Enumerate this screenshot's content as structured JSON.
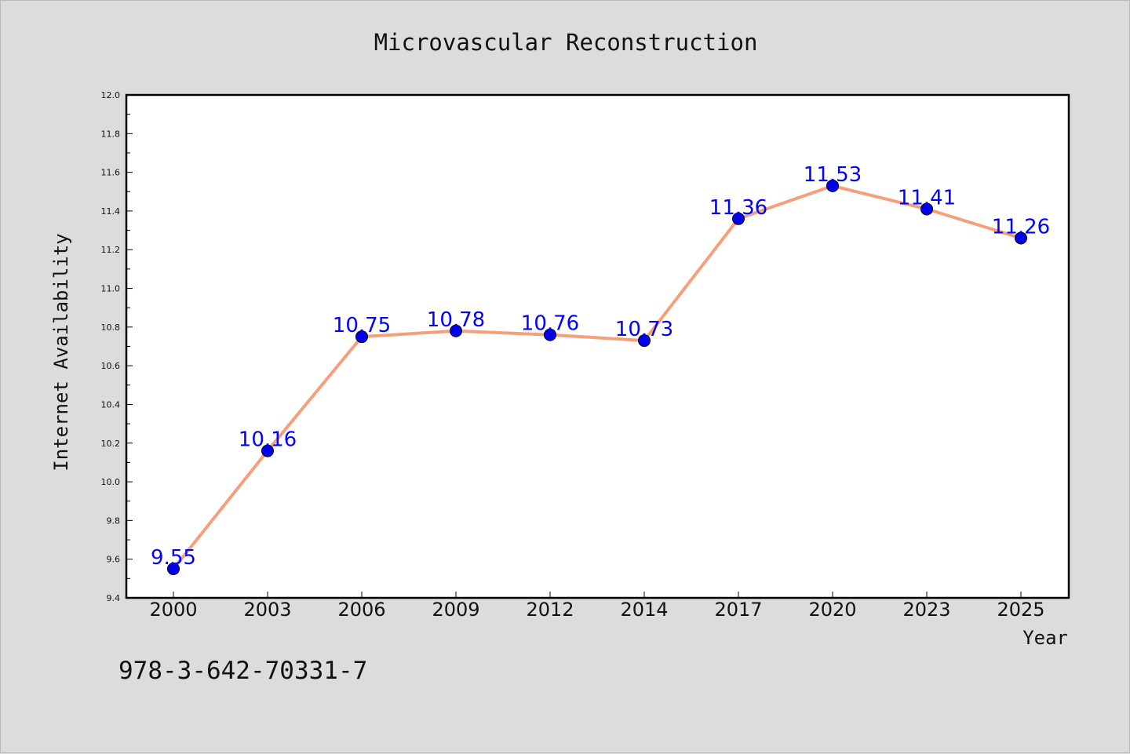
{
  "chart_data": {
    "type": "line",
    "title": "Microvascular Reconstruction",
    "xlabel": "Year",
    "ylabel": "Internet Availability",
    "categories": [
      "2000",
      "2003",
      "2006",
      "2009",
      "2012",
      "2014",
      "2017",
      "2020",
      "2023",
      "2025"
    ],
    "series": [
      {
        "values": [
          9.55,
          10.16,
          10.75,
          10.78,
          10.76,
          10.73,
          11.36,
          11.53,
          11.41,
          11.26
        ],
        "labels": [
          "9.55",
          "10.16",
          "10.75",
          "10.78",
          "10.76",
          "10.73",
          "11.36",
          "11.53",
          "11.41",
          "11.26"
        ],
        "line_color": "#f4a07c",
        "marker_color": "#0000ee",
        "label_color": "#0000ff"
      }
    ],
    "ylim": [
      9.4,
      12.0
    ],
    "yticks": [
      "9.4",
      "9.6",
      "9.8",
      "10.0",
      "10.2",
      "10.4",
      "10.6",
      "10.8",
      "11.0",
      "11.2",
      "11.4",
      "11.6",
      "11.8",
      "12.0"
    ],
    "grid": false,
    "legend": "none"
  },
  "footer": {
    "isbn": "978-3-642-70331-7"
  },
  "colors": {
    "background": "#dcdcdc",
    "plot_background": "#ffffff",
    "axis": "#000000"
  }
}
